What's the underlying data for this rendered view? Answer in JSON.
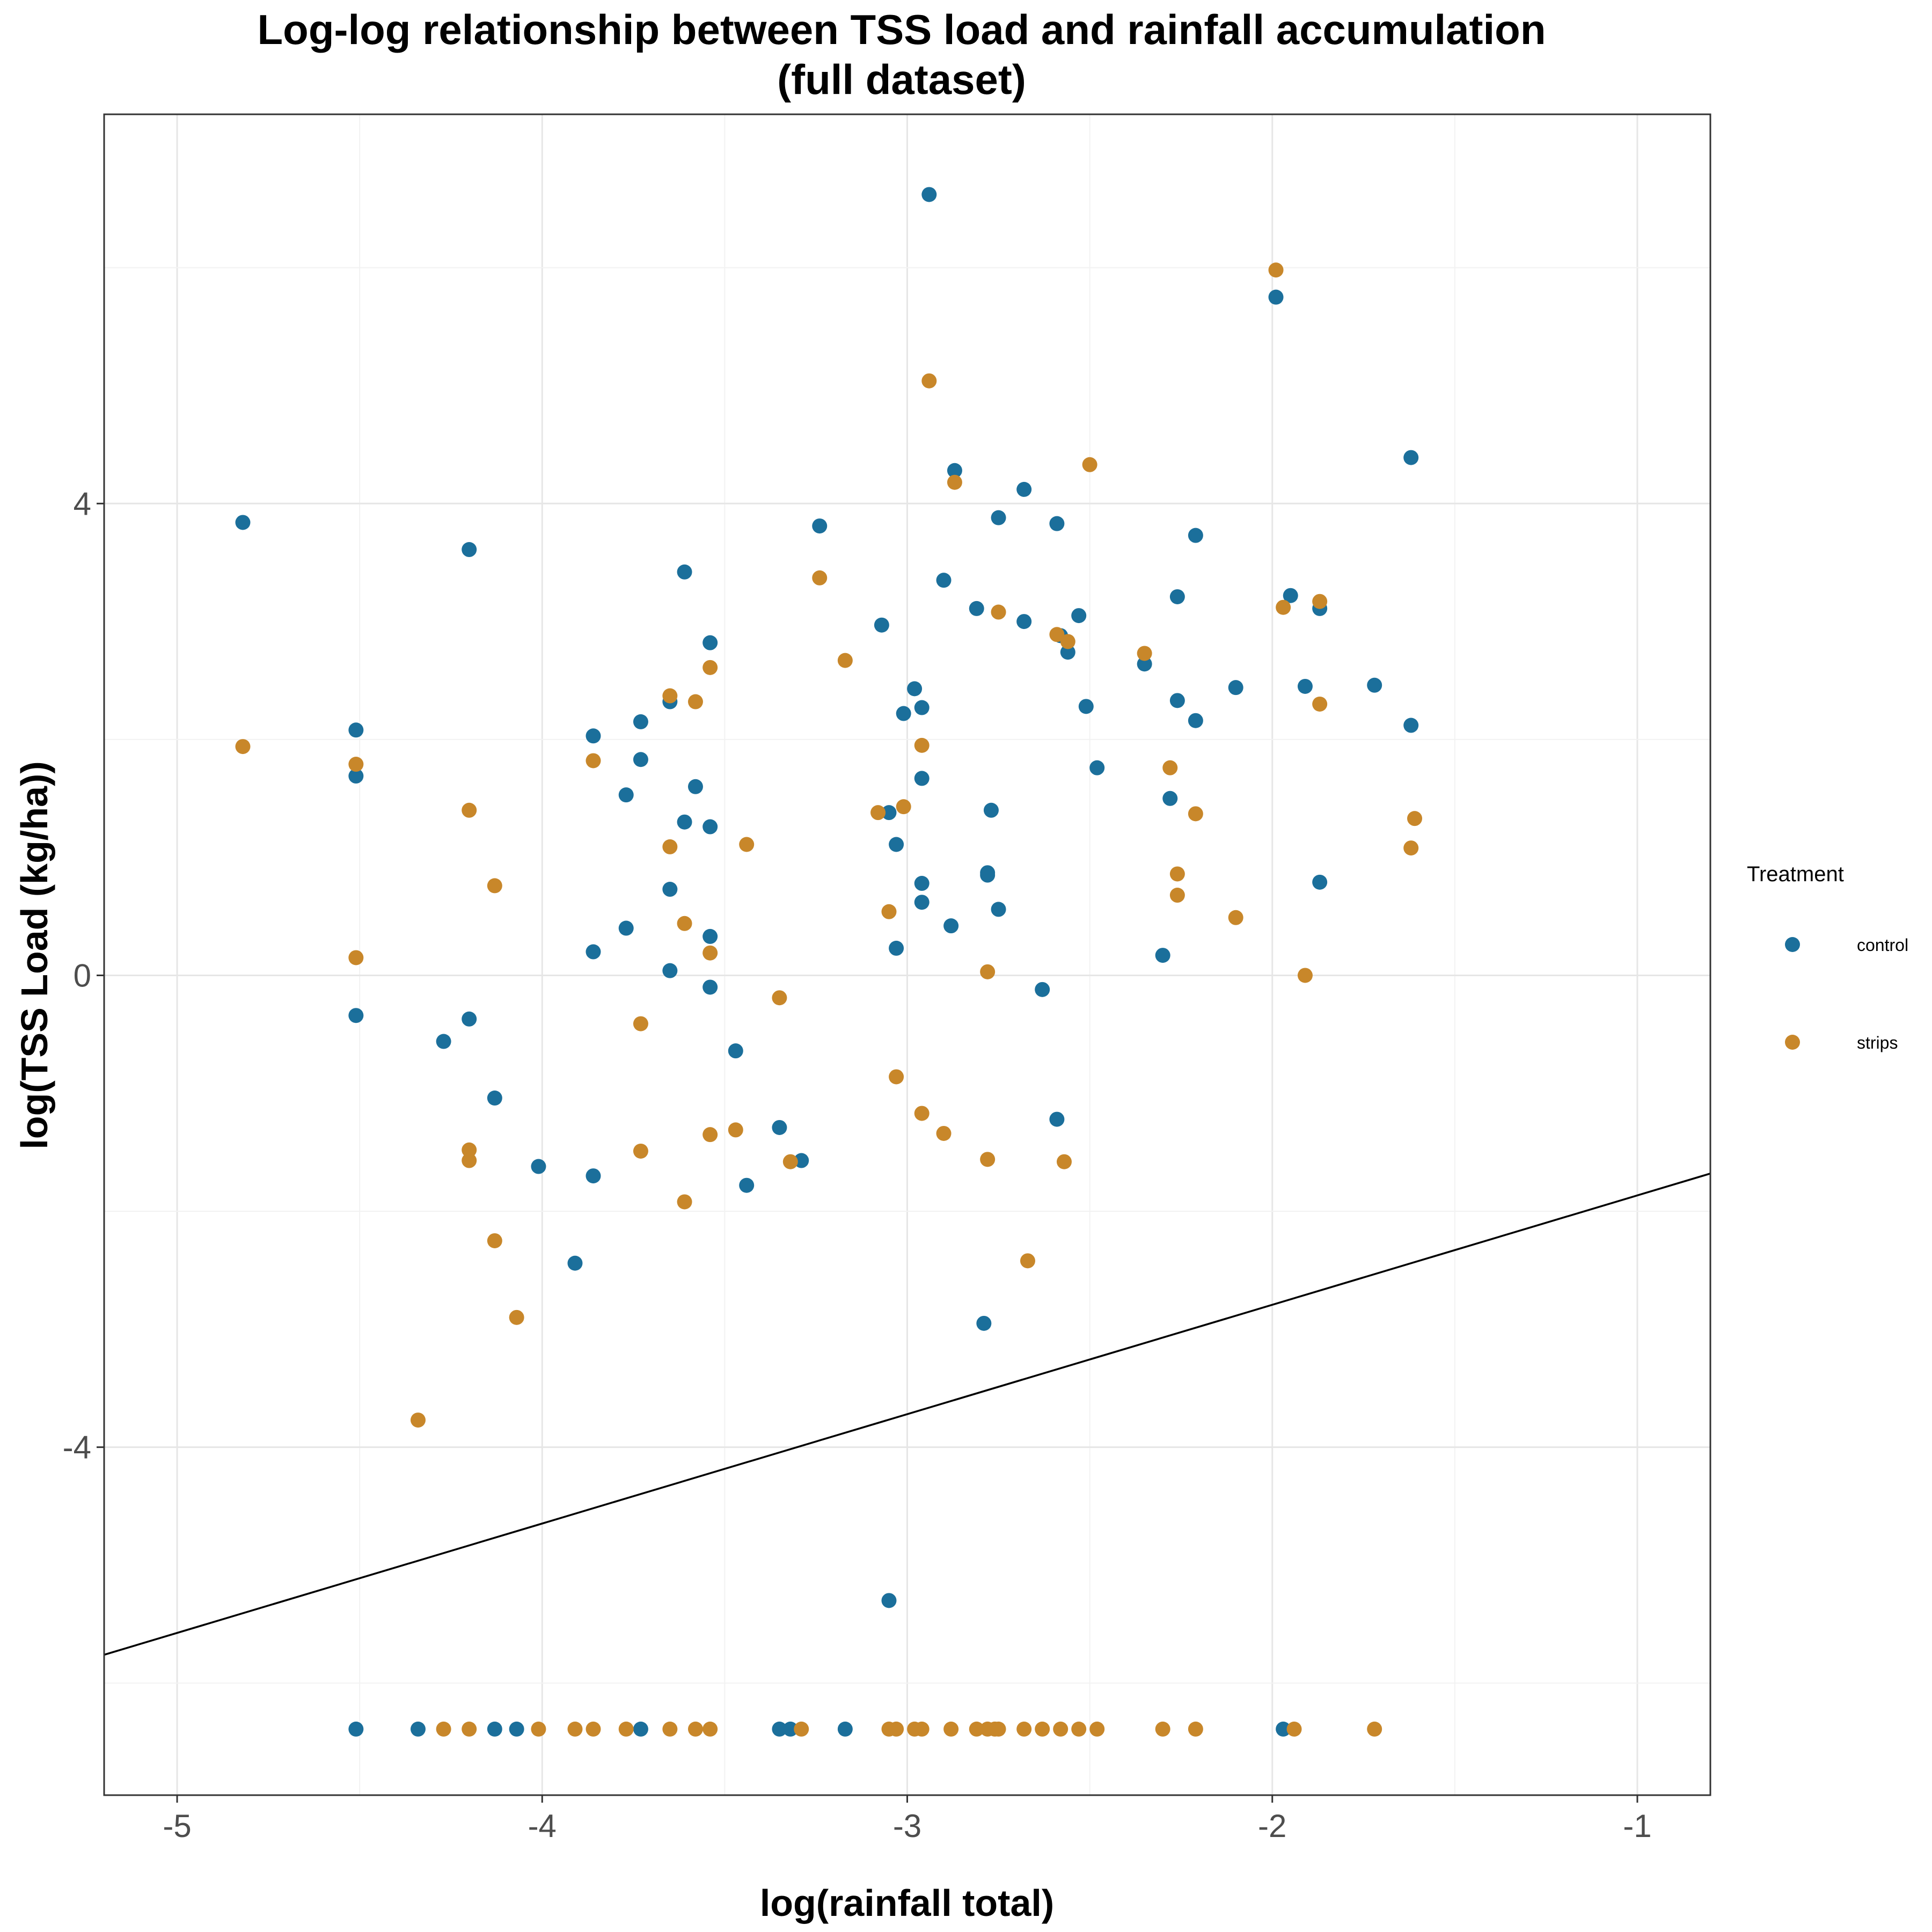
{
  "chart_data": {
    "type": "scatter",
    "title_lines": [
      "Log-log relationship between TSS load and rainfall accumulation",
      "(full dataset)"
    ],
    "xlabel": "log(rainfall total)",
    "ylabel": "log(TSS Load (kg/ha))",
    "xlim": [
      -5.2,
      -0.8
    ],
    "ylim": [
      -6.95,
      7.3
    ],
    "x_ticks": [
      -5,
      -4,
      -3,
      -2,
      -1
    ],
    "y_ticks": [
      -4,
      0,
      4
    ],
    "x_tick_labels": [
      "-5",
      "-4",
      "-3",
      "-2",
      "-1"
    ],
    "y_tick_labels": [
      "-4",
      "0",
      "4"
    ],
    "grid": true,
    "legend": {
      "title": "Treatment",
      "position": "right"
    },
    "fit_line": {
      "x": [
        -5.2,
        -0.8
      ],
      "y": [
        -5.76,
        -1.68
      ]
    },
    "series": [
      {
        "name": "control",
        "color": "#1b6f9b",
        "points": [
          [
            -4.82,
            3.84
          ],
          [
            -4.51,
            2.08
          ],
          [
            -4.51,
            1.69
          ],
          [
            -4.51,
            -0.34
          ],
          [
            -4.2,
            3.61
          ],
          [
            -4.2,
            -0.37
          ],
          [
            -4.27,
            -0.56
          ],
          [
            -4.13,
            -1.04
          ],
          [
            -4.01,
            -1.62
          ],
          [
            -3.91,
            -2.44
          ],
          [
            -3.86,
            2.03
          ],
          [
            -3.86,
            0.2
          ],
          [
            -3.86,
            -1.7
          ],
          [
            -3.77,
            1.53
          ],
          [
            -3.77,
            0.4
          ],
          [
            -3.73,
            2.15
          ],
          [
            -3.73,
            1.83
          ],
          [
            -3.65,
            2.32
          ],
          [
            -3.65,
            0.73
          ],
          [
            -3.65,
            0.04
          ],
          [
            -3.61,
            3.42
          ],
          [
            -3.61,
            1.3
          ],
          [
            -3.58,
            1.6
          ],
          [
            -3.54,
            2.82
          ],
          [
            -3.54,
            1.26
          ],
          [
            -3.54,
            0.33
          ],
          [
            -3.54,
            -0.1
          ],
          [
            -3.47,
            -0.64
          ],
          [
            -3.44,
            -1.78
          ],
          [
            -3.35,
            -1.29
          ],
          [
            -3.29,
            -1.57
          ],
          [
            -3.24,
            3.81
          ],
          [
            -3.07,
            2.97
          ],
          [
            -3.05,
            1.38
          ],
          [
            -3.03,
            1.11
          ],
          [
            -3.03,
            0.23
          ],
          [
            -3.01,
            2.22
          ],
          [
            -2.98,
            2.43
          ],
          [
            -2.96,
            2.27
          ],
          [
            -2.96,
            1.67
          ],
          [
            -2.96,
            0.78
          ],
          [
            -2.96,
            0.62
          ],
          [
            -2.94,
            6.62
          ],
          [
            -2.9,
            3.35
          ],
          [
            -2.88,
            0.42
          ],
          [
            -2.87,
            4.28
          ],
          [
            -2.81,
            3.11
          ],
          [
            -2.78,
            0.87
          ],
          [
            -2.78,
            0.85
          ],
          [
            -2.77,
            1.4
          ],
          [
            -2.75,
            3.88
          ],
          [
            -2.75,
            0.56
          ],
          [
            -2.79,
            -2.95
          ],
          [
            -2.68,
            4.12
          ],
          [
            -2.68,
            3.0
          ],
          [
            -2.63,
            -0.12
          ],
          [
            -2.59,
            3.83
          ],
          [
            -2.58,
            2.88
          ],
          [
            -2.56,
            2.74
          ],
          [
            -2.53,
            3.05
          ],
          [
            -2.51,
            2.28
          ],
          [
            -2.48,
            1.76
          ],
          [
            -2.35,
            2.64
          ],
          [
            -2.3,
            0.17
          ],
          [
            -2.28,
            1.5
          ],
          [
            -2.26,
            3.21
          ],
          [
            -2.26,
            2.33
          ],
          [
            -2.21,
            3.73
          ],
          [
            -2.21,
            2.16
          ],
          [
            -2.1,
            2.44
          ],
          [
            -1.99,
            5.75
          ],
          [
            -1.95,
            3.22
          ],
          [
            -1.91,
            2.45
          ],
          [
            -1.87,
            3.11
          ],
          [
            -1.87,
            0.79
          ],
          [
            -1.72,
            2.46
          ],
          [
            -1.62,
            4.39
          ],
          [
            -1.62,
            2.12
          ],
          [
            -2.59,
            -1.22
          ],
          [
            -3.05,
            -5.3
          ],
          [
            -4.51,
            -6.39
          ],
          [
            -4.34,
            -6.39
          ],
          [
            -4.13,
            -6.39
          ],
          [
            -4.07,
            -6.39
          ],
          [
            -3.73,
            -6.39
          ],
          [
            -3.35,
            -6.39
          ],
          [
            -3.32,
            -6.39
          ],
          [
            -3.17,
            -6.39
          ],
          [
            -1.97,
            -6.39
          ]
        ]
      },
      {
        "name": "strips",
        "color": "#c8872a",
        "points": [
          [
            -4.82,
            1.94
          ],
          [
            -4.51,
            1.79
          ],
          [
            -4.51,
            0.15
          ],
          [
            -4.2,
            1.4
          ],
          [
            -4.2,
            -1.48
          ],
          [
            -4.2,
            -1.57
          ],
          [
            -4.13,
            0.76
          ],
          [
            -4.13,
            -2.25
          ],
          [
            -4.07,
            -2.9
          ],
          [
            -4.34,
            -3.77
          ],
          [
            -3.86,
            1.82
          ],
          [
            -3.73,
            -0.41
          ],
          [
            -3.73,
            -1.49
          ],
          [
            -3.65,
            2.37
          ],
          [
            -3.65,
            1.09
          ],
          [
            -3.61,
            0.44
          ],
          [
            -3.61,
            -1.92
          ],
          [
            -3.58,
            2.32
          ],
          [
            -3.54,
            2.61
          ],
          [
            -3.54,
            0.19
          ],
          [
            -3.54,
            -1.35
          ],
          [
            -3.47,
            -1.31
          ],
          [
            -3.44,
            1.11
          ],
          [
            -3.35,
            -0.19
          ],
          [
            -3.32,
            -1.58
          ],
          [
            -3.24,
            3.37
          ],
          [
            -3.17,
            2.67
          ],
          [
            -3.08,
            1.38
          ],
          [
            -3.05,
            0.54
          ],
          [
            -3.03,
            -0.86
          ],
          [
            -3.01,
            1.43
          ],
          [
            -2.96,
            1.95
          ],
          [
            -2.96,
            -1.17
          ],
          [
            -2.94,
            5.04
          ],
          [
            -2.9,
            -1.34
          ],
          [
            -2.87,
            4.18
          ],
          [
            -2.75,
            3.08
          ],
          [
            -2.78,
            0.03
          ],
          [
            -2.78,
            -1.56
          ],
          [
            -2.67,
            -2.42
          ],
          [
            -2.59,
            2.89
          ],
          [
            -2.56,
            2.83
          ],
          [
            -2.57,
            -1.58
          ],
          [
            -2.5,
            4.33
          ],
          [
            -2.35,
            2.73
          ],
          [
            -2.28,
            1.76
          ],
          [
            -2.26,
            0.86
          ],
          [
            -2.26,
            0.68
          ],
          [
            -2.21,
            1.37
          ],
          [
            -2.1,
            0.49
          ],
          [
            -1.99,
            5.98
          ],
          [
            -1.97,
            3.12
          ],
          [
            -1.91,
            0.0
          ],
          [
            -1.87,
            3.17
          ],
          [
            -1.87,
            2.3
          ],
          [
            -1.61,
            1.33
          ],
          [
            -1.62,
            1.08
          ],
          [
            -4.27,
            -6.39
          ],
          [
            -4.2,
            -6.39
          ],
          [
            -4.01,
            -6.39
          ],
          [
            -3.91,
            -6.39
          ],
          [
            -3.86,
            -6.39
          ],
          [
            -3.77,
            -6.39
          ],
          [
            -3.65,
            -6.39
          ],
          [
            -3.58,
            -6.39
          ],
          [
            -3.54,
            -6.39
          ],
          [
            -3.29,
            -6.39
          ],
          [
            -3.05,
            -6.39
          ],
          [
            -3.03,
            -6.39
          ],
          [
            -2.98,
            -6.39
          ],
          [
            -2.96,
            -6.39
          ],
          [
            -2.88,
            -6.39
          ],
          [
            -2.81,
            -6.39
          ],
          [
            -2.78,
            -6.39
          ],
          [
            -2.76,
            -6.39
          ],
          [
            -2.75,
            -6.39
          ],
          [
            -2.68,
            -6.39
          ],
          [
            -2.63,
            -6.39
          ],
          [
            -2.58,
            -6.39
          ],
          [
            -2.53,
            -6.39
          ],
          [
            -2.48,
            -6.39
          ],
          [
            -2.3,
            -6.39
          ],
          [
            -2.21,
            -6.39
          ],
          [
            -1.94,
            -6.39
          ],
          [
            -1.72,
            -6.39
          ]
        ]
      }
    ]
  }
}
